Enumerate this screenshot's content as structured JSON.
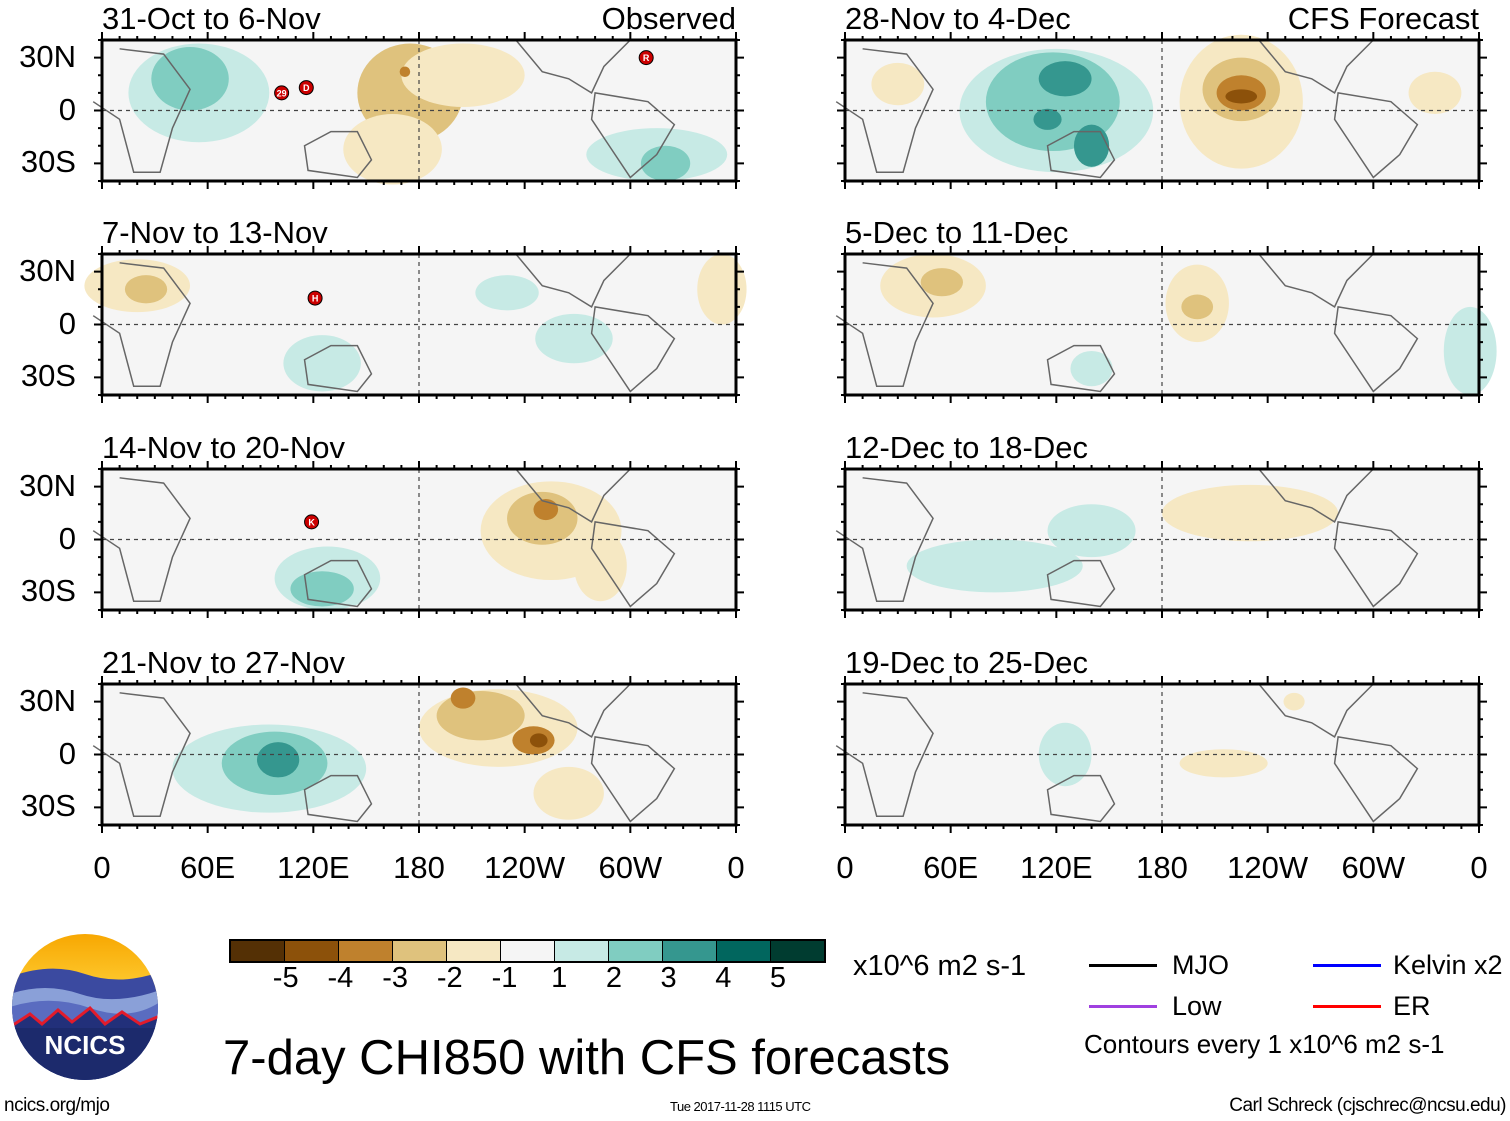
{
  "figure": {
    "title": "7-day CHI850 with CFS forecasts",
    "observed_label": "Observed",
    "forecast_label": "CFS Forecast",
    "lat_labels": [
      "30N",
      "0",
      "30S"
    ],
    "lon_labels": [
      "0",
      "60E",
      "120E",
      "180",
      "120W",
      "60W",
      "0"
    ],
    "lon_values": [
      0,
      60,
      120,
      180,
      240,
      300,
      360
    ],
    "lat_range": [
      -40,
      40
    ]
  },
  "panels": [
    {
      "title": "31-Oct to 6-Nov",
      "column": "observed",
      "anomalies": [
        {
          "lon": 55,
          "lat": 10,
          "value": 1,
          "rx": 40,
          "ry": 28
        },
        {
          "lon": 50,
          "lat": 18,
          "value": 2,
          "rx": 22,
          "ry": 18
        },
        {
          "lon": 175,
          "lat": 10,
          "value": -2,
          "rx": 30,
          "ry": 28
        },
        {
          "lon": 205,
          "lat": 20,
          "value": -1,
          "rx": 35,
          "ry": 18
        },
        {
          "lon": 165,
          "lat": -22,
          "value": -1,
          "rx": 28,
          "ry": 20
        },
        {
          "lon": 172,
          "lat": 22,
          "value": -3,
          "rx": 3,
          "ry": 3
        },
        {
          "lon": 315,
          "lat": -25,
          "value": 1,
          "rx": 40,
          "ry": 15
        },
        {
          "lon": 320,
          "lat": -30,
          "value": 2,
          "rx": 14,
          "ry": 10
        }
      ],
      "storms": [
        {
          "label": "29",
          "lon": 102,
          "lat": 10
        },
        {
          "label": "D",
          "lon": 116,
          "lat": 13
        },
        {
          "label": "R",
          "lon": 309,
          "lat": 30
        }
      ]
    },
    {
      "title": "7-Nov to 13-Nov",
      "column": "observed",
      "anomalies": [
        {
          "lon": 20,
          "lat": 22,
          "value": -1,
          "rx": 30,
          "ry": 15
        },
        {
          "lon": 25,
          "lat": 20,
          "value": -2,
          "rx": 12,
          "ry": 8
        },
        {
          "lon": 125,
          "lat": -22,
          "value": 1,
          "rx": 22,
          "ry": 16
        },
        {
          "lon": 268,
          "lat": -8,
          "value": 1,
          "rx": 22,
          "ry": 14
        },
        {
          "lon": 230,
          "lat": 18,
          "value": 1,
          "rx": 18,
          "ry": 10
        },
        {
          "lon": 352,
          "lat": 20,
          "value": -1,
          "rx": 14,
          "ry": 20
        }
      ],
      "storms": [
        {
          "label": "H",
          "lon": 121,
          "lat": 15
        }
      ]
    },
    {
      "title": "14-Nov to 20-Nov",
      "column": "observed",
      "anomalies": [
        {
          "lon": 128,
          "lat": -22,
          "value": 1,
          "rx": 30,
          "ry": 18
        },
        {
          "lon": 125,
          "lat": -28,
          "value": 2,
          "rx": 18,
          "ry": 10
        },
        {
          "lon": 255,
          "lat": 5,
          "value": -1,
          "rx": 40,
          "ry": 28
        },
        {
          "lon": 250,
          "lat": 12,
          "value": -2,
          "rx": 20,
          "ry": 15
        },
        {
          "lon": 252,
          "lat": 17,
          "value": -3,
          "rx": 7,
          "ry": 6
        },
        {
          "lon": 283,
          "lat": -15,
          "value": -1,
          "rx": 15,
          "ry": 20
        }
      ],
      "storms": [
        {
          "label": "K",
          "lon": 119,
          "lat": 10
        }
      ]
    },
    {
      "title": "21-Nov to 27-Nov",
      "column": "observed",
      "anomalies": [
        {
          "lon": 95,
          "lat": -8,
          "value": 1,
          "rx": 55,
          "ry": 25
        },
        {
          "lon": 98,
          "lat": -5,
          "value": 2,
          "rx": 30,
          "ry": 18
        },
        {
          "lon": 100,
          "lat": -3,
          "value": 3,
          "rx": 12,
          "ry": 10
        },
        {
          "lon": 225,
          "lat": 15,
          "value": -1,
          "rx": 45,
          "ry": 22
        },
        {
          "lon": 215,
          "lat": 22,
          "value": -2,
          "rx": 25,
          "ry": 14
        },
        {
          "lon": 205,
          "lat": 32,
          "value": -3,
          "rx": 7,
          "ry": 6
        },
        {
          "lon": 245,
          "lat": 8,
          "value": -3,
          "rx": 12,
          "ry": 8
        },
        {
          "lon": 248,
          "lat": 8,
          "value": -4,
          "rx": 5,
          "ry": 4
        },
        {
          "lon": 265,
          "lat": -22,
          "value": -1,
          "rx": 20,
          "ry": 15
        }
      ],
      "storms": []
    },
    {
      "title": "28-Nov to 4-Dec",
      "column": "forecast",
      "anomalies": [
        {
          "lon": 120,
          "lat": 0,
          "value": 1,
          "rx": 55,
          "ry": 35
        },
        {
          "lon": 118,
          "lat": 5,
          "value": 2,
          "rx": 38,
          "ry": 28
        },
        {
          "lon": 125,
          "lat": 18,
          "value": 3,
          "rx": 15,
          "ry": 10
        },
        {
          "lon": 140,
          "lat": -20,
          "value": 3,
          "rx": 10,
          "ry": 12
        },
        {
          "lon": 115,
          "lat": -5,
          "value": 3,
          "rx": 8,
          "ry": 6
        },
        {
          "lon": 225,
          "lat": 5,
          "value": -1,
          "rx": 35,
          "ry": 38
        },
        {
          "lon": 225,
          "lat": 12,
          "value": -2,
          "rx": 22,
          "ry": 18
        },
        {
          "lon": 225,
          "lat": 10,
          "value": -3,
          "rx": 14,
          "ry": 10
        },
        {
          "lon": 225,
          "lat": 8,
          "value": -4,
          "rx": 9,
          "ry": 4
        },
        {
          "lon": 335,
          "lat": 10,
          "value": -1,
          "rx": 15,
          "ry": 12
        },
        {
          "lon": 30,
          "lat": 15,
          "value": -1,
          "rx": 15,
          "ry": 12
        }
      ],
      "storms": []
    },
    {
      "title": "5-Dec to 11-Dec",
      "column": "forecast",
      "anomalies": [
        {
          "lon": 50,
          "lat": 22,
          "value": -1,
          "rx": 30,
          "ry": 18
        },
        {
          "lon": 55,
          "lat": 24,
          "value": -2,
          "rx": 12,
          "ry": 8
        },
        {
          "lon": 200,
          "lat": 12,
          "value": -1,
          "rx": 18,
          "ry": 22
        },
        {
          "lon": 200,
          "lat": 10,
          "value": -2,
          "rx": 9,
          "ry": 7
        },
        {
          "lon": 355,
          "lat": -15,
          "value": 1,
          "rx": 15,
          "ry": 25
        },
        {
          "lon": 140,
          "lat": -25,
          "value": 1,
          "rx": 12,
          "ry": 10
        }
      ],
      "storms": []
    },
    {
      "title": "12-Dec to 18-Dec",
      "column": "forecast",
      "anomalies": [
        {
          "lon": 85,
          "lat": -15,
          "value": 1,
          "rx": 50,
          "ry": 15
        },
        {
          "lon": 140,
          "lat": 5,
          "value": 1,
          "rx": 25,
          "ry": 15
        },
        {
          "lon": 230,
          "lat": 15,
          "value": -1,
          "rx": 50,
          "ry": 16
        },
        {
          "lon": 205,
          "lat": 10,
          "value": -1,
          "rx": 20,
          "ry": 6
        }
      ],
      "storms": []
    },
    {
      "title": "19-Dec to 25-Dec",
      "column": "forecast",
      "anomalies": [
        {
          "lon": 125,
          "lat": 0,
          "value": 1,
          "rx": 15,
          "ry": 18
        },
        {
          "lon": 215,
          "lat": -5,
          "value": -1,
          "rx": 25,
          "ry": 8
        },
        {
          "lon": 255,
          "lat": 30,
          "value": -1,
          "rx": 6,
          "ry": 5
        }
      ],
      "storms": []
    }
  ],
  "colorbar": {
    "colors": [
      "#543005",
      "#8c510a",
      "#bf812d",
      "#dfc27d",
      "#f6e8c3",
      "#f5f5f5",
      "#c7eae5",
      "#80cdc1",
      "#35978f",
      "#01665e",
      "#003c30"
    ],
    "labels": [
      "-5",
      "-4",
      "-3",
      "-2",
      "-1",
      "1",
      "2",
      "3",
      "4",
      "5"
    ],
    "units": "x10^6 m2 s-1"
  },
  "legend": {
    "items": [
      {
        "label": "MJO",
        "color": "#000000"
      },
      {
        "label": "Kelvin x2",
        "color": "#0000ff"
      },
      {
        "label": "Low",
        "color": "#a040e0"
      },
      {
        "label": "ER",
        "color": "#ff0000"
      }
    ],
    "contours_note": "Contours every 1 x10^6 m2 s-1"
  },
  "logo": {
    "text": "NCICS"
  },
  "footer": {
    "url": "ncics.org/mjo",
    "timestamp": "Tue 2017-11-28 1115 UTC",
    "author": "Carl Schreck (cjschrec@ncsu.edu)"
  }
}
